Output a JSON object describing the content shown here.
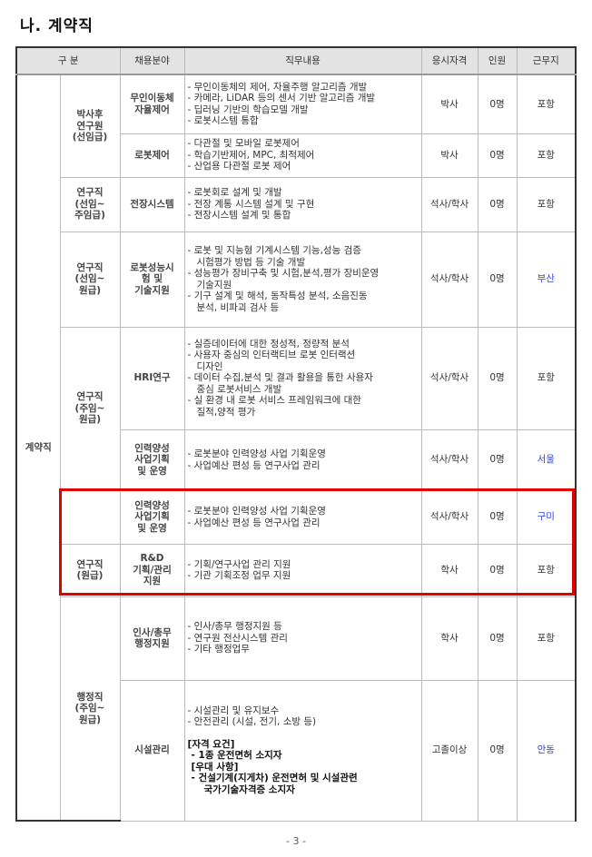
{
  "title": "나. 계약직",
  "headers": [
    "구 분",
    "채용분야",
    "직무내용",
    "응시자격",
    "인원",
    "근무지"
  ],
  "category": "계약직",
  "groups": {
    "g1": "박사후\n연구원\n(선임급)",
    "g2": "연구직\n(선임~\n주임급)",
    "g3": "연구직\n(선임~\n원급)",
    "g4": "연구직\n(주임~\n원급)",
    "g5": "연구직\n(원급)",
    "g6": "행정직\n(주임~\n원급)"
  },
  "rows": [
    {
      "field": "무인이동체\n자율제어",
      "duties": [
        "- 무인이동체의 제어, 자율주행 알고리즘 개발",
        "- 카메라, LiDAR 등의 센서 기반 알고리즘 개발",
        "- 딥러닝 기반의 학습모델 개발",
        "- 로봇시스템 통합"
      ],
      "qual": "박사",
      "count": "0명",
      "location": "포항"
    },
    {
      "field": "로봇제어",
      "duties": [
        "- 다관절 및 모바일 로봇제어",
        "- 학습기반제어, MPC, 최적제어",
        "- 산업용 다관절 로봇 제어"
      ],
      "qual": "박사",
      "count": "0명",
      "location": "포항"
    },
    {
      "field": "전장시스템",
      "duties": [
        "- 로봇회로 설계 및 개발",
        "- 전장 계통 시스템 설계 및 구현",
        "- 전장시스템 설계 및 통합"
      ],
      "qual": "석사/학사",
      "count": "0명",
      "location": "포항"
    },
    {
      "field": "로봇성능시\n험 및\n기술지원",
      "duties": [
        "- 로봇 및 지능형 기계시스템 기능,성능 검증",
        "  시험평가 방법 등 기술 개발",
        "- 성능평가 장비구축 및 시험,분석,평가 장비운영",
        "  기술지원",
        "- 기구 설계 및 해석, 동작특성 분석, 소음진동",
        "  분석, 비파괴 검사 등"
      ],
      "qual": "석사/학사",
      "count": "0명",
      "location": "부산"
    },
    {
      "field": "HRI연구",
      "duties": [
        "- 실증데이터에 대한 정성적, 정량적 분석",
        "- 사용자 중심의 인터랙티브 로봇 인터랙션",
        "  디자인",
        "- 데이터 수집,분석 및 결과 활용을 통한 사용자",
        "  중심 로봇서비스 개발",
        "- 실 환경 내 로봇 서비스 프레임워크에 대한",
        "  질적,양적 평가"
      ],
      "qual": "석사/학사",
      "count": "0명",
      "location": "포항"
    },
    {
      "field": "인력양성\n사업기획\n및 운영",
      "duties": [
        "- 로봇분야 인력양성 사업 기획운영",
        "- 사업예산 편성 등 연구사업 관리"
      ],
      "qual": "석사/학사",
      "count": "0명",
      "location": "서울"
    },
    {
      "field": "인력양성\n사업기획\n및 운영",
      "duties": [
        "- 로봇분야 인력양성 사업 기획운영",
        "- 사업예산 편성 등 연구사업 관리"
      ],
      "qual": "석사/학사",
      "count": "0명",
      "location": "구미"
    },
    {
      "field": "R&D\n기획/관리\n지원",
      "duties": [
        "- 기획/연구사업 관리 지원",
        "- 기관 기획조정 업무 지원"
      ],
      "qual": "학사",
      "count": "0명",
      "location": "포항"
    },
    {
      "field": "인사/총무\n행정지원",
      "duties": [
        "- 인사/총무 행정지원 등",
        "- 연구원 전산시스템 관리",
        "- 기타 행정업무"
      ],
      "qual": "학사",
      "count": "0명",
      "location": "포항"
    },
    {
      "field": "시설관리",
      "duties": [
        "- 시설관리 및 유지보수",
        "- 안전관리 (시설, 전기, 소방 등)"
      ],
      "req_title": "[자격 요건]",
      "req": "- 1종 운전면허 소지자",
      "pref_title": "[우대 사항]",
      "pref": [
        "- 건설기계(지게차) 운전면허 및 시설관련",
        "  국가기술자격증 소지자"
      ],
      "qual": "고졸이상",
      "count": "0명",
      "location": "안동"
    }
  ],
  "page_number": "- 3 -",
  "colors": {
    "highlight_box": "#e00000",
    "location_link": "#3344dd"
  }
}
